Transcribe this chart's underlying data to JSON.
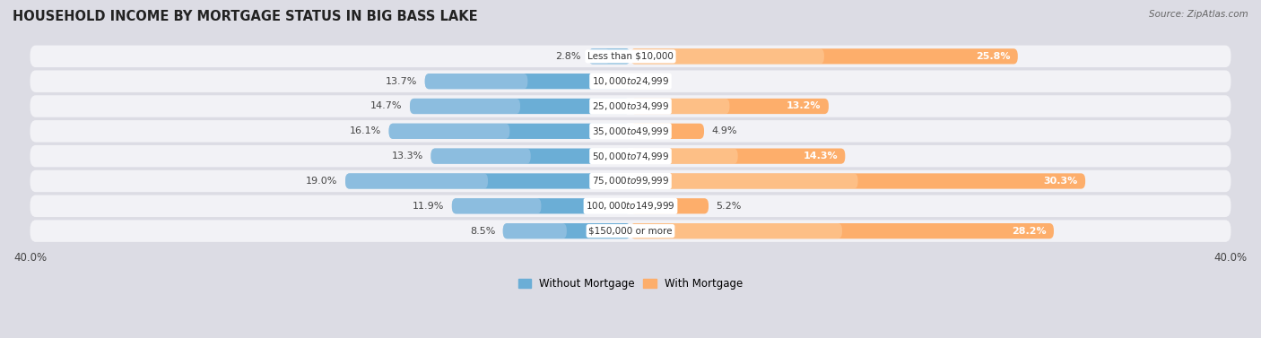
{
  "title": "HOUSEHOLD INCOME BY MORTGAGE STATUS IN BIG BASS LAKE",
  "source": "Source: ZipAtlas.com",
  "categories": [
    "Less than $10,000",
    "$10,000 to $24,999",
    "$25,000 to $34,999",
    "$35,000 to $49,999",
    "$50,000 to $74,999",
    "$75,000 to $99,999",
    "$100,000 to $149,999",
    "$150,000 or more"
  ],
  "without_mortgage": [
    2.8,
    13.7,
    14.7,
    16.1,
    13.3,
    19.0,
    11.9,
    8.5
  ],
  "with_mortgage": [
    25.8,
    0.0,
    13.2,
    4.9,
    14.3,
    30.3,
    5.2,
    28.2
  ],
  "blue_light": "#aecde8",
  "blue_dark": "#6baed6",
  "orange_light": "#fdd0a2",
  "orange_dark": "#fdae6b",
  "bg_color": "#e8e8ec",
  "row_bg": "#f0f0f4",
  "axis_limit": 40.0,
  "title_fontsize": 10.5,
  "label_fontsize": 8.0,
  "cat_fontsize": 7.5,
  "tick_fontsize": 8.5,
  "figsize": [
    14.06,
    3.77
  ],
  "dpi": 100
}
